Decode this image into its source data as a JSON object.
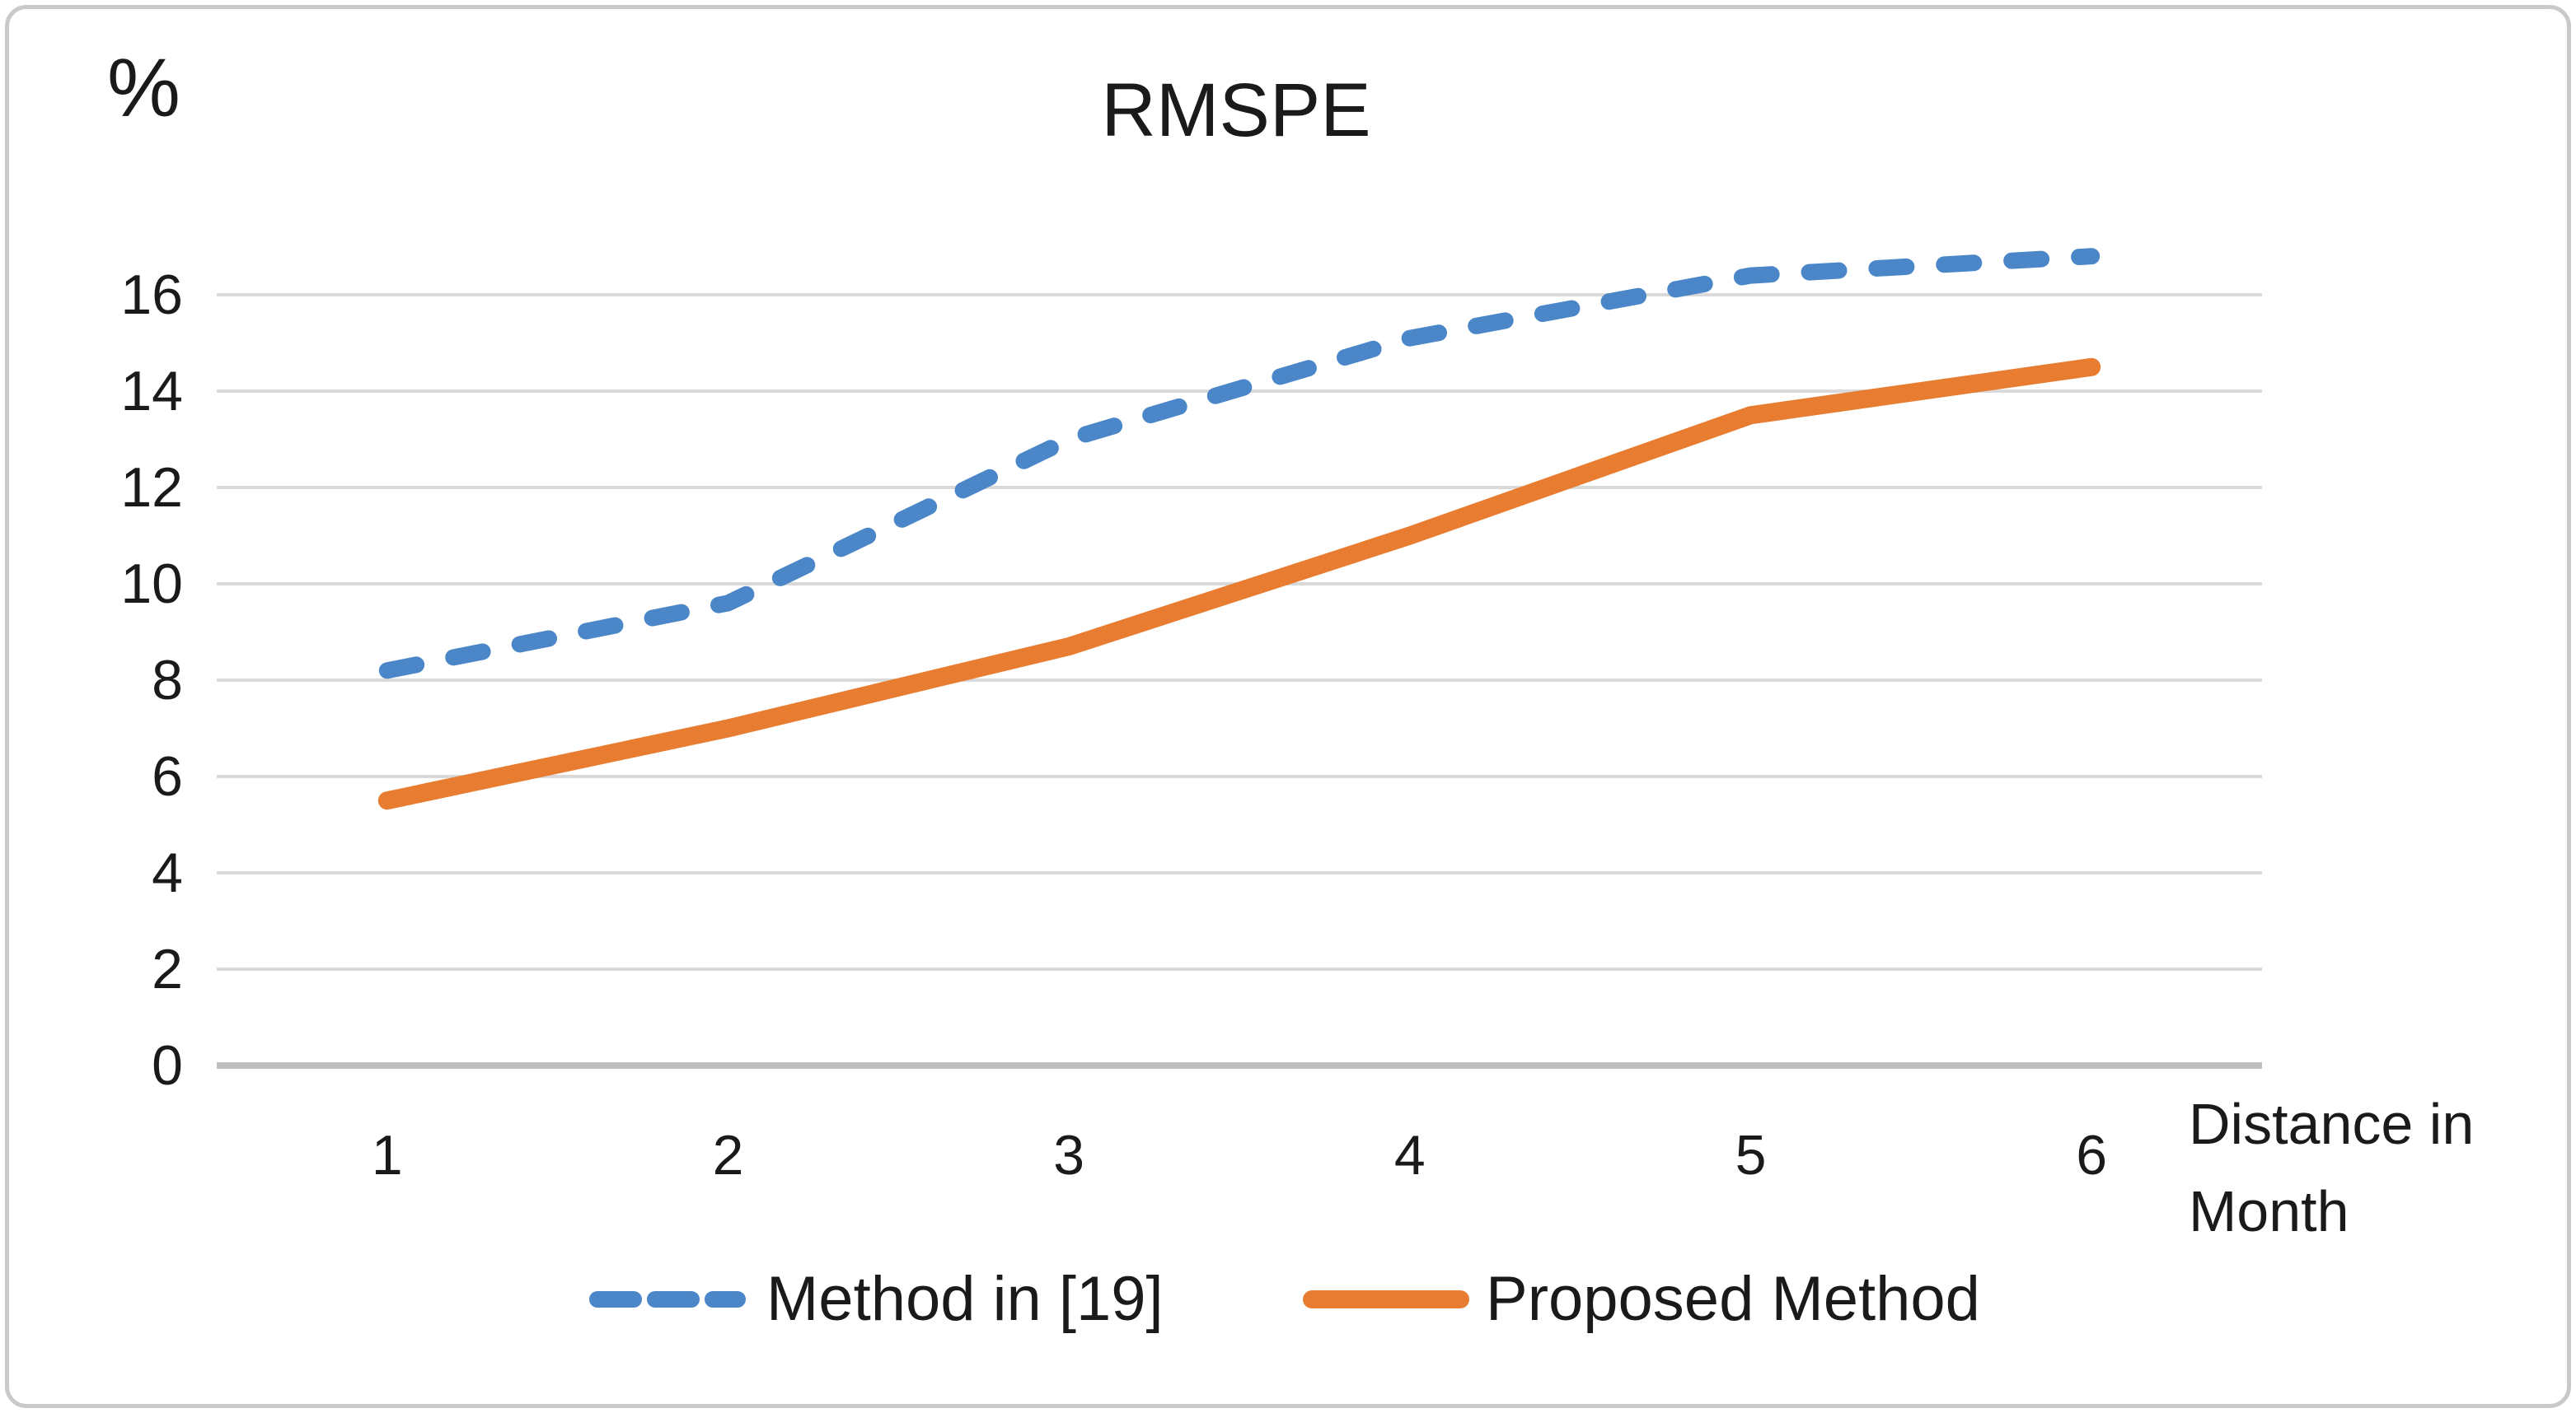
{
  "chart_data": {
    "type": "line",
    "title": "RMSPE",
    "ylabel": "%",
    "xlabel": "Distance in Month",
    "xlabel_lines": [
      "Distance in",
      "Month"
    ],
    "categories": [
      "1",
      "2",
      "3",
      "4",
      "5",
      "6"
    ],
    "x": [
      1,
      2,
      3,
      4,
      5,
      6
    ],
    "series": [
      {
        "name": "Method in [19]",
        "values": [
          8.2,
          9.6,
          13.0,
          15.1,
          16.4,
          16.8
        ],
        "color": "#4B87C8",
        "style": "dashed"
      },
      {
        "name": "Proposed Method",
        "values": [
          5.5,
          7.0,
          8.7,
          11.0,
          13.5,
          14.5
        ],
        "color": "#E87C30",
        "style": "solid"
      }
    ],
    "ylim": [
      0,
      16
    ],
    "ytick_step": 2,
    "yticks": [
      16,
      14,
      12,
      10,
      8,
      6,
      4,
      2,
      0
    ],
    "grid": true,
    "legend_position": "bottom"
  },
  "colors": {
    "gridline": "#D9D9D9",
    "axis_line": "#BFBFBF",
    "frame_border": "#C9C9C9",
    "text": "#1A1A1A",
    "background": "#FFFFFF",
    "series_blue": "#4B87C8",
    "series_orange": "#E87C30"
  }
}
